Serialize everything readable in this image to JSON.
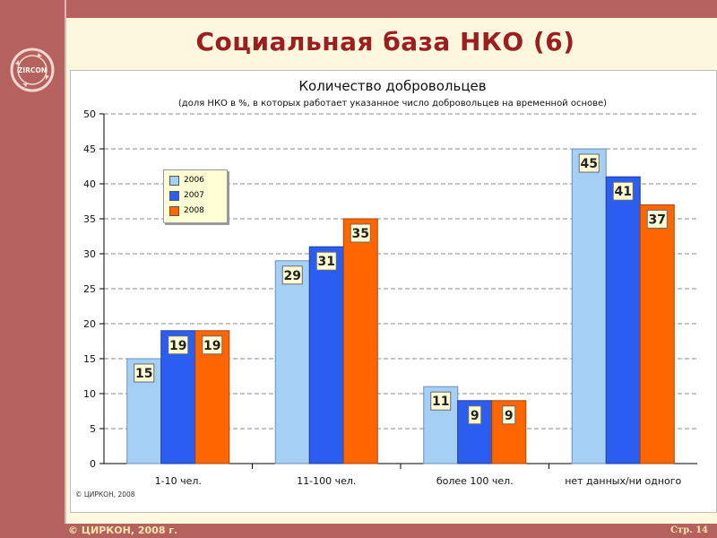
{
  "page": {
    "title": "Социальная база НКО (6)",
    "copyright": "© ЦИРКОН, 2008 г.",
    "page_number": "Стр. 14",
    "logo_text": "ZIRCON"
  },
  "colors": {
    "frame": "#b5615f",
    "title": "#9b1f20",
    "s2006": "#a6cff5",
    "s2007": "#2b5ef0",
    "s2008": "#ff6600"
  },
  "chart_data": {
    "type": "bar",
    "title": "Количество добровольцев",
    "subtitle": "(доля НКО в %, в которых работает указанное число добровольцев на временной основе)",
    "categories": [
      "1-10 чел.",
      "11-100 чел.",
      "более 100 чел.",
      "нет данных/ни одного"
    ],
    "series": [
      {
        "name": "2006",
        "values": [
          15,
          29,
          11,
          45
        ],
        "labels": [
          "15",
          "29",
          "11",
          "45"
        ]
      },
      {
        "name": "2007",
        "values": [
          19,
          31,
          9,
          41
        ],
        "labels": [
          "19",
          "31",
          "9",
          "41"
        ]
      },
      {
        "name": "2008",
        "values": [
          19,
          35,
          9,
          37
        ],
        "labels": [
          "19",
          "35",
          "9",
          "37"
        ]
      }
    ],
    "ylim": [
      0,
      50
    ],
    "yticks": [
      "0",
      "5",
      "10",
      "15",
      "20",
      "25",
      "30",
      "35",
      "40",
      "45",
      "50"
    ],
    "grid": true,
    "legend_position": "top-left",
    "note": "© ЦИРКОН, 2008"
  }
}
